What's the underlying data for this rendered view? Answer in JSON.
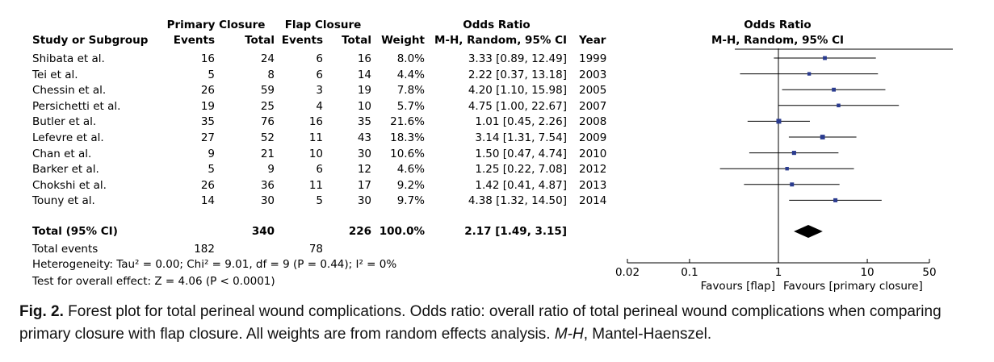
{
  "headers": {
    "group_primary": "Primary Closure",
    "group_flap": "Flap Closure",
    "group_or": "Odds Ratio",
    "study": "Study or Subgroup",
    "events1": "Events",
    "total1": "Total",
    "events2": "Events",
    "total2": "Total",
    "weight": "Weight",
    "method": "M-H, Random, 95% CI",
    "year": "Year",
    "plot_title": "Odds Ratio",
    "plot_method": "M-H, Random, 95% CI"
  },
  "studies": [
    {
      "name": "Shibata et al.",
      "e1": "16",
      "t1": "24",
      "e2": "6",
      "t2": "16",
      "weight": "8.0%",
      "ci": "3.33 [0.89, 12.49]",
      "year": "1999"
    },
    {
      "name": "Tei et al.",
      "e1": "5",
      "t1": "8",
      "e2": "6",
      "t2": "14",
      "weight": "4.4%",
      "ci": "2.22 [0.37, 13.18]",
      "year": "2003"
    },
    {
      "name": "Chessin et al.",
      "e1": "26",
      "t1": "59",
      "e2": "3",
      "t2": "19",
      "weight": "7.8%",
      "ci": "4.20 [1.10, 15.98]",
      "year": "2005"
    },
    {
      "name": "Persichetti et al.",
      "e1": "19",
      "t1": "25",
      "e2": "4",
      "t2": "10",
      "weight": "5.7%",
      "ci": "4.75 [1.00, 22.67]",
      "year": "2007"
    },
    {
      "name": "Butler et al.",
      "e1": "35",
      "t1": "76",
      "e2": "16",
      "t2": "35",
      "weight": "21.6%",
      "ci": "1.01 [0.45, 2.26]",
      "year": "2008"
    },
    {
      "name": "Lefevre et al.",
      "e1": "27",
      "t1": "52",
      "e2": "11",
      "t2": "43",
      "weight": "18.3%",
      "ci": "3.14 [1.31, 7.54]",
      "year": "2009"
    },
    {
      "name": "Chan et al.",
      "e1": "9",
      "t1": "21",
      "e2": "10",
      "t2": "30",
      "weight": "10.6%",
      "ci": "1.50 [0.47, 4.74]",
      "year": "2010"
    },
    {
      "name": "Barker et al.",
      "e1": "5",
      "t1": "9",
      "e2": "6",
      "t2": "12",
      "weight": "4.6%",
      "ci": "1.25 [0.22, 7.08]",
      "year": "2012"
    },
    {
      "name": "Chokshi et al.",
      "e1": "26",
      "t1": "36",
      "e2": "11",
      "t2": "17",
      "weight": "9.2%",
      "ci": "1.42 [0.41, 4.87]",
      "year": "2013"
    },
    {
      "name": "Touny et al.",
      "e1": "14",
      "t1": "30",
      "e2": "5",
      "t2": "30",
      "weight": "9.7%",
      "ci": "4.38 [1.32, 14.50]",
      "year": "2014"
    }
  ],
  "total": {
    "label": "Total (95% CI)",
    "t1": "340",
    "t2": "226",
    "weight": "100.0%",
    "ci": "2.17 [1.49, 3.15]"
  },
  "total_events": {
    "label": "Total events",
    "e1": "182",
    "e2": "78"
  },
  "heterogeneity": "Heterogeneity: Tau² = 0.00; Chi² = 9.01, df = 9 (P = 0.44); I² = 0%",
  "overall_effect": "Test for overall effect: Z = 4.06 (P < 0.0001)",
  "axis": {
    "ticks": [
      0.02,
      0.1,
      1,
      10,
      50
    ],
    "tick_labels": [
      "0.02",
      "0.1",
      "1",
      "10",
      "50"
    ],
    "favours_left": "Favours [flap]",
    "favours_right": "Favours [primary closure]",
    "scale": "log"
  },
  "chart_data": {
    "type": "forest",
    "scale": "log",
    "xlim": [
      0.02,
      50
    ],
    "reference_line": 1,
    "studies": [
      {
        "name": "Shibata et al.",
        "or": 3.33,
        "lo": 0.89,
        "hi": 12.49,
        "weight": 8.0
      },
      {
        "name": "Tei et al.",
        "or": 2.22,
        "lo": 0.37,
        "hi": 13.18,
        "weight": 4.4
      },
      {
        "name": "Chessin et al.",
        "or": 4.2,
        "lo": 1.1,
        "hi": 15.98,
        "weight": 7.8
      },
      {
        "name": "Persichetti et al.",
        "or": 4.75,
        "lo": 1.0,
        "hi": 22.67,
        "weight": 5.7
      },
      {
        "name": "Butler et al.",
        "or": 1.01,
        "lo": 0.45,
        "hi": 2.26,
        "weight": 21.6
      },
      {
        "name": "Lefevre et al.",
        "or": 3.14,
        "lo": 1.31,
        "hi": 7.54,
        "weight": 18.3
      },
      {
        "name": "Chan et al.",
        "or": 1.5,
        "lo": 0.47,
        "hi": 4.74,
        "weight": 10.6
      },
      {
        "name": "Barker et al.",
        "or": 1.25,
        "lo": 0.22,
        "hi": 7.08,
        "weight": 4.6
      },
      {
        "name": "Chokshi et al.",
        "or": 1.42,
        "lo": 0.41,
        "hi": 4.87,
        "weight": 9.2
      },
      {
        "name": "Touny et al.",
        "or": 4.38,
        "lo": 1.32,
        "hi": 14.5,
        "weight": 9.7
      }
    ],
    "pooled": {
      "or": 2.17,
      "lo": 1.49,
      "hi": 3.15
    }
  },
  "caption": {
    "fig_label": "Fig. 2.",
    "text_main": " Forest plot for total perineal wound complications. Odds ratio: overall ratio of total perineal wound complications when comparing primary closure with flap closure. All weights are from random effects analysis. ",
    "abbr": "M-H",
    "text_end": ", Mantel-Haenszel."
  },
  "colors": {
    "marker": "#2a3b8f",
    "line": "#000000"
  }
}
